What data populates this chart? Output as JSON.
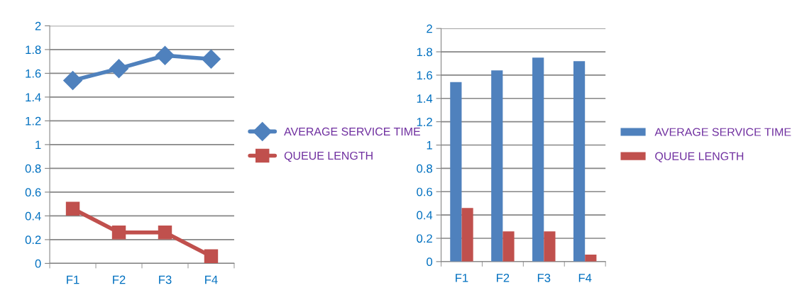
{
  "chart_data": [
    {
      "type": "line",
      "categories": [
        "F1",
        "F2",
        "F3",
        "F4"
      ],
      "series": [
        {
          "name": "AVERAGE SERVICE TIME",
          "color": "#4f81bd",
          "values": [
            1.54,
            1.64,
            1.75,
            1.72
          ],
          "marker": "diamond"
        },
        {
          "name": "QUEUE LENGTH",
          "color": "#c0504d",
          "values": [
            0.46,
            0.26,
            0.26,
            0.06
          ],
          "marker": "square"
        }
      ],
      "ylim": [
        0,
        2
      ],
      "yticks": [
        0,
        0.2,
        0.4,
        0.6,
        0.8,
        1,
        1.2,
        1.4,
        1.6,
        1.8,
        2
      ],
      "grid": "y",
      "legend": "right",
      "line_style": "solid"
    },
    {
      "type": "bar",
      "categories": [
        "F1",
        "F2",
        "F3",
        "F4"
      ],
      "series": [
        {
          "name": "AVERAGE SERVICE TIME",
          "color": "#4f81bd",
          "values": [
            1.54,
            1.64,
            1.75,
            1.72
          ]
        },
        {
          "name": "QUEUE LENGTH",
          "color": "#c0504d",
          "values": [
            0.46,
            0.26,
            0.26,
            0.06
          ]
        }
      ],
      "ylim": [
        0,
        2
      ],
      "yticks": [
        0,
        0.2,
        0.4,
        0.6,
        0.8,
        1,
        1.2,
        1.4,
        1.6,
        1.8,
        2
      ],
      "grid": "y",
      "legend": "right"
    }
  ]
}
